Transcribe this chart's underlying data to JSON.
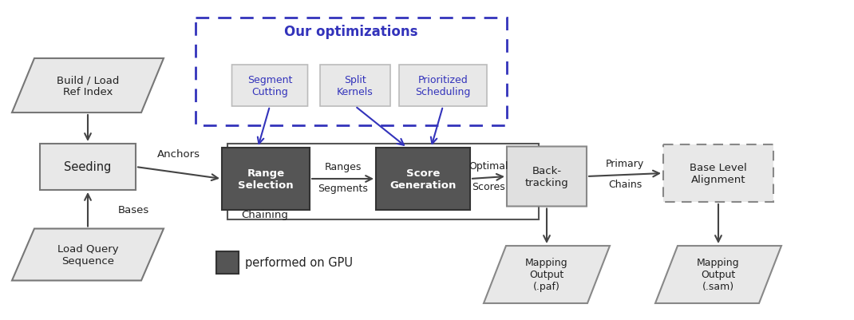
{
  "bg_color": "#ffffff",
  "light_box_color": "#e8e8e8",
  "dark_box_color": "#555555",
  "dashed_blue_color": "#3333bb",
  "blue_color": "#3333bb",
  "text_dark_on_dark": "#ffffff",
  "text_normal": "#222222",
  "text_blue": "#3333bb",
  "arrow_color": "#444444",
  "blue_arrow_color": "#3333bb",
  "opt_title": "Our optimizations",
  "seg_cut_label": "Segment\nCutting",
  "split_kern_label": "Split\nKernels",
  "prior_sched_label": "Prioritized\nScheduling",
  "range_sel_label": "Range\nSelection",
  "score_gen_label": "Score\nGeneration",
  "backtrack_label": "Back-\ntracking",
  "seeding_label": "Seeding",
  "build_load_label": "Build / Load\nRef Index",
  "load_query_label": "Load Query\nSequence",
  "base_align_label": "Base Level\nAlignment",
  "map_paf_label": "Mapping\nOutput\n(.paf)",
  "map_sam_label": "Mapping\nOutput\n(.sam)",
  "anchors_label": "Anchors",
  "bases_label": "Bases",
  "ranges_label": "Ranges",
  "segments_label": "Segments",
  "optimal_label": "Optimal",
  "scores_label": "Scores",
  "primary_label": "Primary",
  "chains_label": "Chains",
  "chaining_label": "Chaining",
  "gpu_legend_label": "performed on GPU"
}
